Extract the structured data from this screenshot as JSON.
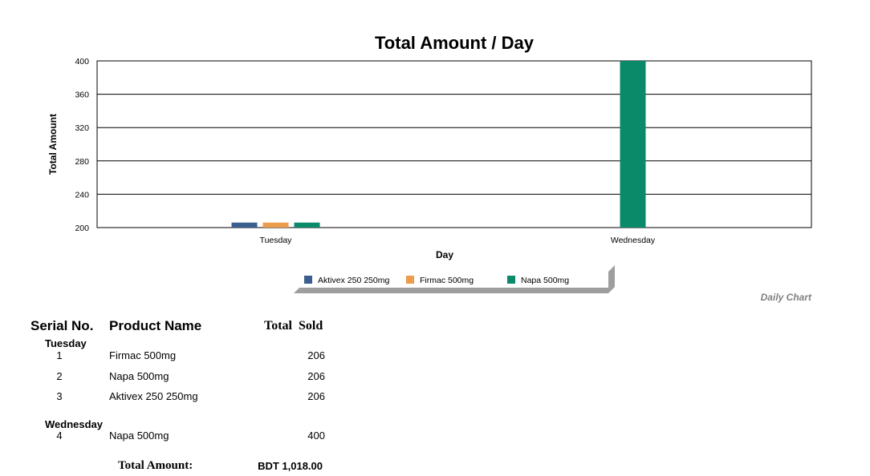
{
  "chart_data": {
    "type": "bar",
    "title": "Total Amount / Day",
    "xlabel": "Day",
    "ylabel": "Total Amount",
    "ylim": [
      200,
      400
    ],
    "yticks": [
      200,
      240,
      280,
      320,
      360,
      400
    ],
    "categories": [
      "Tuesday",
      "Wednesday"
    ],
    "grid": true,
    "legend_position": "bottom",
    "series": [
      {
        "name": "Aktivex 250 250mg",
        "color": "#3a5f8f",
        "values": [
          206,
          null
        ]
      },
      {
        "name": "Firmac 500mg",
        "color": "#eb9d4c",
        "values": [
          206,
          null
        ]
      },
      {
        "name": "Napa 500mg",
        "color": "#0b8a6a",
        "values": [
          206,
          400
        ]
      }
    ]
  },
  "caption": "Daily Chart",
  "table": {
    "headers": {
      "serial": "Serial No.",
      "product": "Product Name",
      "total": "Total Sold"
    },
    "groups": [
      {
        "day": "Tuesday",
        "rows": [
          {
            "serial": "1",
            "product": "Firmac 500mg",
            "total": "206"
          },
          {
            "serial": "2",
            "product": "Napa 500mg",
            "total": "206"
          },
          {
            "serial": "3",
            "product": "Aktivex 250 250mg",
            "total": "206"
          }
        ]
      },
      {
        "day": "Wednesday",
        "rows": [
          {
            "serial": "4",
            "product": "Napa 500mg",
            "total": "400"
          }
        ]
      }
    ],
    "total_label": "Total Amount:",
    "total_value": "BDT 1,018.00"
  }
}
